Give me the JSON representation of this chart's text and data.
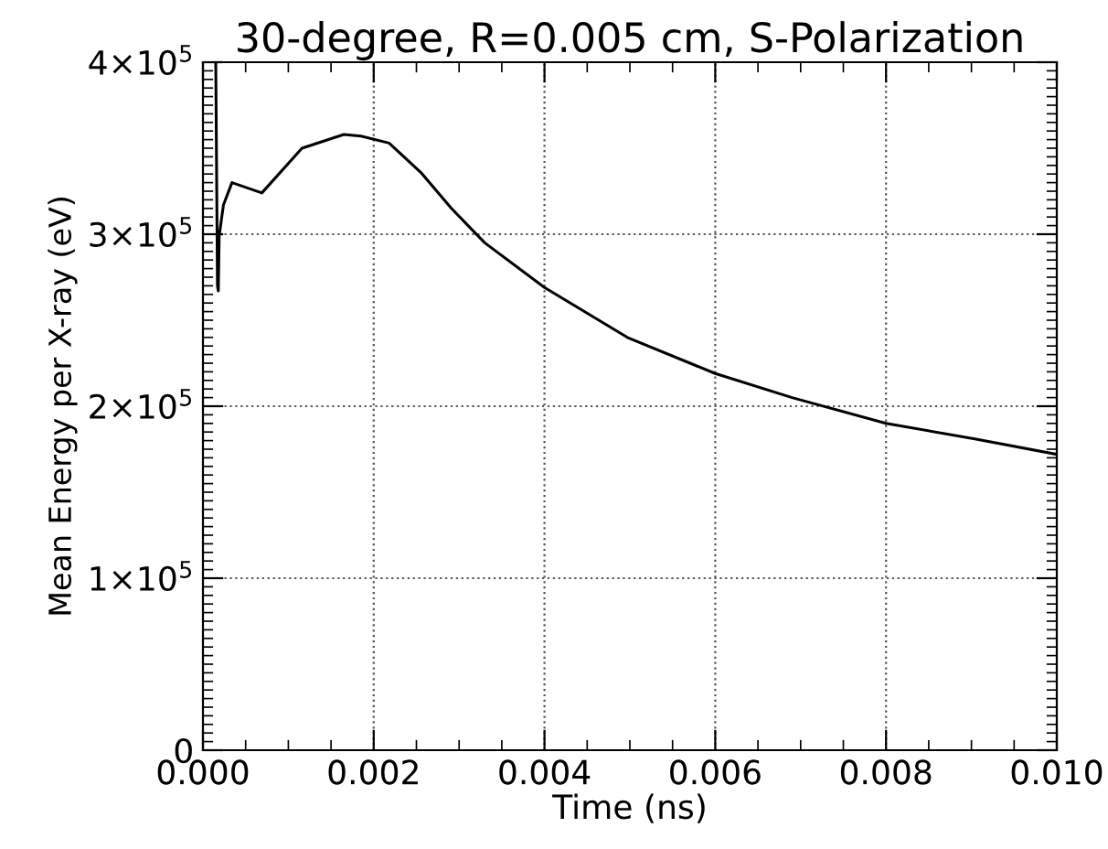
{
  "chart_data": {
    "type": "line",
    "title": "30-degree, R=0.005 cm, S-Polarization",
    "xlabel": "Time (ns)",
    "ylabel": "Mean Energy per X-ray (eV)",
    "series": [
      {
        "color": "#000000",
        "x": [
          0.00015,
          0.00017,
          0.00018,
          0.00019,
          0.00024,
          0.00034,
          0.00069,
          0.00116,
          0.00165,
          0.00185,
          0.00218,
          0.00255,
          0.00291,
          0.0033,
          0.004,
          0.00497,
          0.006,
          0.0069,
          0.008,
          0.00904,
          0.01
        ],
        "values": [
          400000,
          270000,
          267000,
          299000,
          317000,
          330000,
          324000,
          350000,
          358000,
          357000,
          353000,
          336000,
          315000,
          295000,
          269000,
          240000,
          219000,
          205000,
          190000,
          181000,
          172000
        ]
      }
    ],
    "xlim": [
      0,
      0.01
    ],
    "xticks": [
      {
        "value": 0,
        "label": "0.000"
      },
      {
        "value": 0.002,
        "label": "0.002"
      },
      {
        "value": 0.004,
        "label": "0.004"
      },
      {
        "value": 0.006,
        "label": "0.006"
      },
      {
        "value": 0.008,
        "label": "0.008"
      },
      {
        "value": 0.01,
        "label": "0.010"
      }
    ],
    "ylim": [
      0,
      400000
    ],
    "yticks": [
      {
        "value": 0,
        "label": "0"
      },
      {
        "value": 100000,
        "label": "1×10$^{5}$"
      },
      {
        "value": 200000,
        "label": "2×10$^{5}$"
      },
      {
        "value": 300000,
        "label": "3×10$^{5}$"
      },
      {
        "value": 400000,
        "label": "4×10$^{5}$"
      }
    ],
    "grid": true,
    "line_style": "solid",
    "marker": "none"
  }
}
